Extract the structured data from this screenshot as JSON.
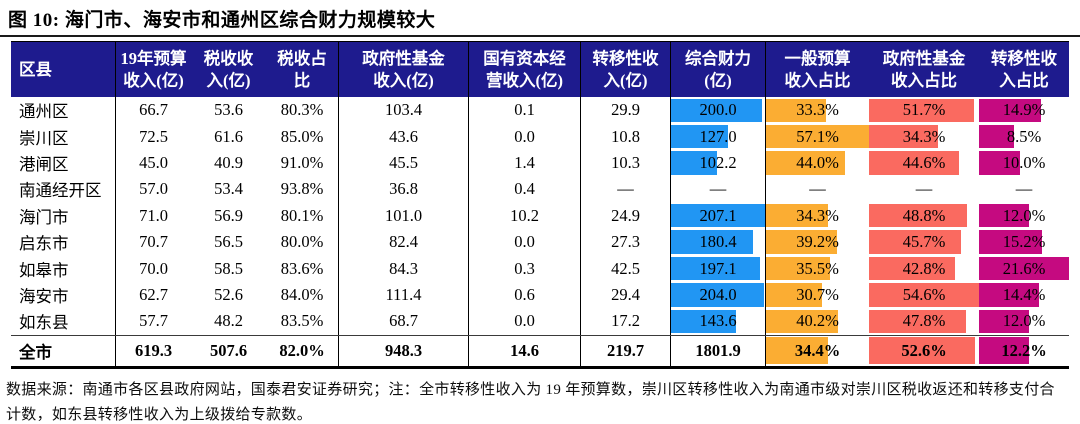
{
  "title": "图 10:  海门市、海安市和通州区综合财力规模较大",
  "colors": {
    "header_bg": "#1E1B8E",
    "header_text": "#FFFFFF",
    "bar_blue": "#2196F3",
    "bar_orange": "#FBAD33",
    "bar_red": "#FA6A60",
    "bar_magenta": "#C50A80"
  },
  "table": {
    "columns": [
      {
        "label": "区县"
      },
      {
        "label": "19年预算\n收入(亿)"
      },
      {
        "label": "税收收\n入(亿)"
      },
      {
        "label": "税收占\n比"
      },
      {
        "label": "政府性基金\n收入(亿)"
      },
      {
        "label": "国有资本经\n营收入(亿)"
      },
      {
        "label": "转移性收\n入(亿)"
      },
      {
        "label": "综合财力\n(亿)",
        "bar": "bar_blue",
        "bar_max": 207.1
      },
      {
        "label": "一般预算\n收入占比",
        "bar": "bar_orange",
        "bar_max": 57.1
      },
      {
        "label": "政府性基金\n收入占比",
        "bar": "bar_red",
        "bar_max": 54.6
      },
      {
        "label": "转移性收\n入占比",
        "bar": "bar_magenta",
        "bar_max": 21.6
      }
    ],
    "rows": [
      {
        "cells": [
          "通州区",
          "66.7",
          "53.6",
          "80.3%",
          "103.4",
          "0.1",
          "29.9",
          "200.0",
          "33.3%",
          "51.7%",
          "14.9%"
        ],
        "bars": [
          null,
          null,
          null,
          null,
          null,
          null,
          null,
          200.0,
          33.3,
          51.7,
          14.9
        ]
      },
      {
        "cells": [
          "崇川区",
          "72.5",
          "61.6",
          "85.0%",
          "43.6",
          "0.0",
          "10.8",
          "127.0",
          "57.1%",
          "34.3%",
          "8.5%"
        ],
        "bars": [
          null,
          null,
          null,
          null,
          null,
          null,
          null,
          127.0,
          57.1,
          34.3,
          8.5
        ]
      },
      {
        "cells": [
          "港闸区",
          "45.0",
          "40.9",
          "91.0%",
          "45.5",
          "1.4",
          "10.3",
          "102.2",
          "44.0%",
          "44.6%",
          "10.0%"
        ],
        "bars": [
          null,
          null,
          null,
          null,
          null,
          null,
          null,
          102.2,
          44.0,
          44.6,
          10.0
        ]
      },
      {
        "cells": [
          "南通经开区",
          "57.0",
          "53.4",
          "93.8%",
          "36.8",
          "0.4",
          "—",
          "—",
          "—",
          "—",
          "—"
        ],
        "bars": [
          null,
          null,
          null,
          null,
          null,
          null,
          null,
          null,
          null,
          null,
          null
        ]
      },
      {
        "cells": [
          "海门市",
          "71.0",
          "56.9",
          "80.1%",
          "101.0",
          "10.2",
          "24.9",
          "207.1",
          "34.3%",
          "48.8%",
          "12.0%"
        ],
        "bars": [
          null,
          null,
          null,
          null,
          null,
          null,
          null,
          207.1,
          34.3,
          48.8,
          12.0
        ]
      },
      {
        "cells": [
          "启东市",
          "70.7",
          "56.5",
          "80.0%",
          "82.4",
          "0.0",
          "27.3",
          "180.4",
          "39.2%",
          "45.7%",
          "15.2%"
        ],
        "bars": [
          null,
          null,
          null,
          null,
          null,
          null,
          null,
          180.4,
          39.2,
          45.7,
          15.2
        ]
      },
      {
        "cells": [
          "如皋市",
          "70.0",
          "58.5",
          "83.6%",
          "84.3",
          "0.3",
          "42.5",
          "197.1",
          "35.5%",
          "42.8%",
          "21.6%"
        ],
        "bars": [
          null,
          null,
          null,
          null,
          null,
          null,
          null,
          197.1,
          35.5,
          42.8,
          21.6
        ]
      },
      {
        "cells": [
          "海安市",
          "62.7",
          "52.6",
          "84.0%",
          "111.4",
          "0.6",
          "29.4",
          "204.0",
          "30.7%",
          "54.6%",
          "14.4%"
        ],
        "bars": [
          null,
          null,
          null,
          null,
          null,
          null,
          null,
          204.0,
          30.7,
          54.6,
          14.4
        ]
      },
      {
        "cells": [
          "如东县",
          "57.7",
          "48.2",
          "83.5%",
          "68.7",
          "0.0",
          "17.2",
          "143.6",
          "40.2%",
          "47.8%",
          "12.0%"
        ],
        "bars": [
          null,
          null,
          null,
          null,
          null,
          null,
          null,
          143.6,
          40.2,
          47.8,
          12.0
        ]
      }
    ],
    "total_row": {
      "cells": [
        "全市",
        "619.3",
        "507.6",
        "82.0%",
        "948.3",
        "14.6",
        "219.7",
        "1801.9",
        "34.4%",
        "52.6%",
        "12.2%"
      ],
      "bars": [
        null,
        null,
        null,
        null,
        null,
        null,
        null,
        null,
        34.4,
        52.6,
        12.2
      ]
    }
  },
  "footnote": "数据来源：南通市各区县政府网站，国泰君安证券研究；注：全市转移性收入为 19 年预算数，崇川区转移性收入为南通市级对崇川区税收返还和转移支付合计数，如东县转移性收入为上级拨给专款数。",
  "chart_data": {
    "type": "table",
    "title": "图 10: 海门市、海安市和通州区综合财力规模较大",
    "columns": [
      "区县",
      "19年预算收入(亿)",
      "税收收入(亿)",
      "税收占比",
      "政府性基金收入(亿)",
      "国有资本经营收入(亿)",
      "转移性收入(亿)",
      "综合财力(亿)",
      "一般预算收入占比",
      "政府性基金收入占比",
      "转移性收入占比"
    ],
    "rows": [
      [
        "通州区",
        66.7,
        53.6,
        "80.3%",
        103.4,
        0.1,
        29.9,
        200.0,
        "33.3%",
        "51.7%",
        "14.9%"
      ],
      [
        "崇川区",
        72.5,
        61.6,
        "85.0%",
        43.6,
        0.0,
        10.8,
        127.0,
        "57.1%",
        "34.3%",
        "8.5%"
      ],
      [
        "港闸区",
        45.0,
        40.9,
        "91.0%",
        45.5,
        1.4,
        10.3,
        102.2,
        "44.0%",
        "44.6%",
        "10.0%"
      ],
      [
        "南通经开区",
        57.0,
        53.4,
        "93.8%",
        36.8,
        0.4,
        "—",
        "—",
        "—",
        "—",
        "—"
      ],
      [
        "海门市",
        71.0,
        56.9,
        "80.1%",
        101.0,
        10.2,
        24.9,
        207.1,
        "34.3%",
        "48.8%",
        "12.0%"
      ],
      [
        "启东市",
        70.7,
        56.5,
        "80.0%",
        82.4,
        0.0,
        27.3,
        180.4,
        "39.2%",
        "45.7%",
        "15.2%"
      ],
      [
        "如皋市",
        70.0,
        58.5,
        "83.6%",
        84.3,
        0.3,
        42.5,
        197.1,
        "35.5%",
        "42.8%",
        "21.6%"
      ],
      [
        "海安市",
        62.7,
        52.6,
        "84.0%",
        111.4,
        0.6,
        29.4,
        204.0,
        "30.7%",
        "54.6%",
        "14.4%"
      ],
      [
        "如东县",
        57.7,
        48.2,
        "83.5%",
        68.7,
        0.0,
        17.2,
        143.6,
        "40.2%",
        "47.8%",
        "12.0%"
      ],
      [
        "全市",
        619.3,
        507.6,
        "82.0%",
        948.3,
        14.6,
        219.7,
        1801.9,
        "34.4%",
        "52.6%",
        "12.2%"
      ]
    ],
    "note": "数据条：综合财力(蓝)、一般预算收入占比(橙)、政府性基金收入占比(红)、转移性收入占比(紫红)"
  }
}
